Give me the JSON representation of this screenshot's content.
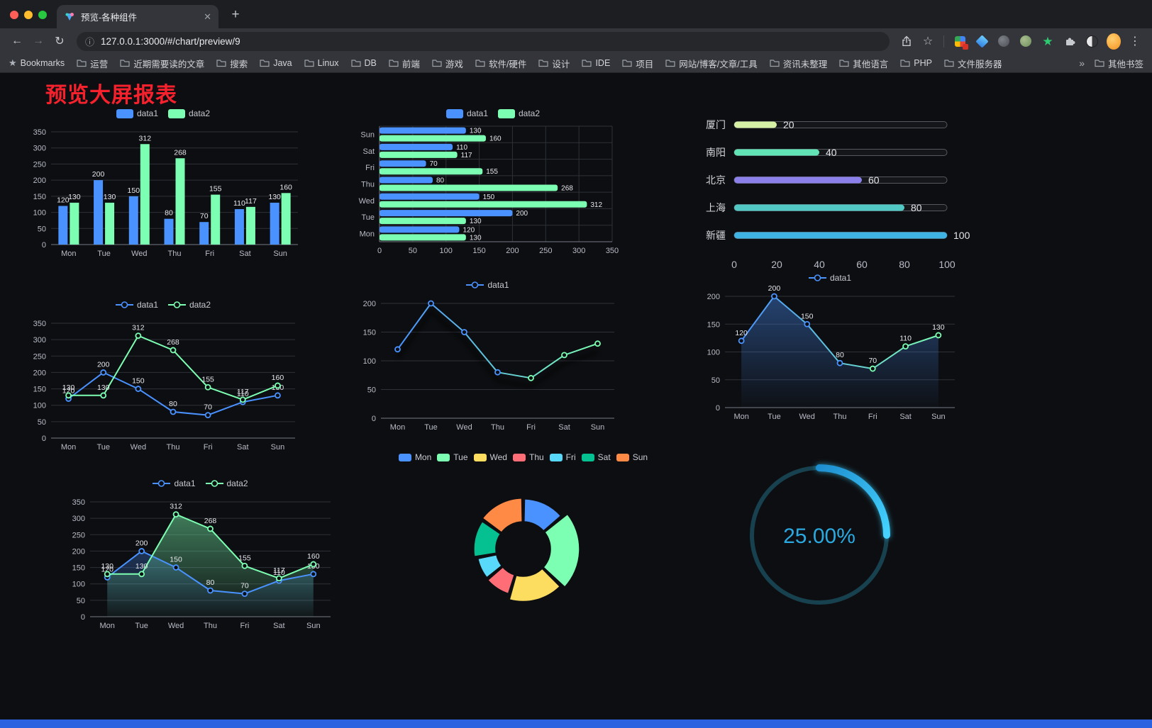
{
  "browser": {
    "tab_title": "预览-各种组件",
    "url": "127.0.0.1:3000/#/chart/preview/9",
    "icons": {
      "close": "✕",
      "new_tab": "+",
      "back": "←",
      "forward": "→",
      "reload": "↻",
      "info": "ⓘ",
      "star": "☆",
      "menu": "⋮",
      "overflow": "»",
      "bookmark_star": "★",
      "ext_star": "★"
    },
    "bookmarks": {
      "first": "Bookmarks",
      "folders": [
        "运营",
        "近期需要读的文章",
        "搜索",
        "Java",
        "Linux",
        "DB",
        "前端",
        "游戏",
        "软件/硬件",
        "设计",
        "IDE",
        "项目",
        "网站/博客/文章/工具",
        "资讯未整理",
        "其他语言",
        "PHP",
        "文件服务器"
      ],
      "other": "其他书签"
    }
  },
  "page": {
    "title": "预览大屏报表",
    "title_color": "#f5222d",
    "background": "#0d0e11",
    "footer_color": "#2a62e0"
  },
  "chart_data": [
    {
      "id": "grouped-bar",
      "type": "bar",
      "legend_style": "bar",
      "categories": [
        "Mon",
        "Tue",
        "Wed",
        "Thu",
        "Fri",
        "Sat",
        "Sun"
      ],
      "series": [
        {
          "name": "data1",
          "color": "#4992ff",
          "values": [
            120,
            200,
            150,
            80,
            70,
            110,
            130
          ]
        },
        {
          "name": "data2",
          "color": "#7cffb2",
          "values": [
            130,
            130,
            312,
            268,
            155,
            117,
            160
          ]
        }
      ],
      "ylim": [
        0,
        350
      ],
      "ytick_step": 50,
      "value_labels": true,
      "grid": true
    },
    {
      "id": "horizontal-bar",
      "type": "hbar",
      "legend_style": "bar",
      "categories": [
        "Mon",
        "Tue",
        "Wed",
        "Thu",
        "Fri",
        "Sat",
        "Sun"
      ],
      "series": [
        {
          "name": "data1",
          "color": "#4992ff",
          "values": [
            120,
            200,
            150,
            80,
            70,
            110,
            130
          ]
        },
        {
          "name": "data2",
          "color": "#7cffb2",
          "values": [
            130,
            130,
            312,
            268,
            155,
            117,
            160
          ]
        }
      ],
      "xlim": [
        0,
        350
      ],
      "xtick_step": 50,
      "value_labels": true,
      "grid": true
    },
    {
      "id": "city-progress",
      "type": "progress",
      "items": [
        {
          "label": "厦门",
          "value": 20,
          "color": "#d5efa4"
        },
        {
          "label": "南阳",
          "value": 40,
          "color": "#62e3b5"
        },
        {
          "label": "北京",
          "value": 60,
          "color": "#8b80e9"
        },
        {
          "label": "上海",
          "value": 80,
          "color": "#52c8c4"
        },
        {
          "label": "新疆",
          "value": 100,
          "color": "#3fb3e4"
        }
      ],
      "xlim": [
        0,
        100
      ],
      "xticks": [
        0,
        20,
        40,
        60,
        80,
        100
      ]
    },
    {
      "id": "two-line",
      "type": "line",
      "legend_style": "line",
      "categories": [
        "Mon",
        "Tue",
        "Wed",
        "Thu",
        "Fri",
        "Sat",
        "Sun"
      ],
      "series": [
        {
          "name": "data1",
          "color": "#4992ff",
          "values": [
            120,
            200,
            150,
            80,
            70,
            110,
            130
          ]
        },
        {
          "name": "data2",
          "color": "#7cffb2",
          "values": [
            130,
            130,
            312,
            268,
            155,
            117,
            160
          ]
        }
      ],
      "ylim": [
        0,
        350
      ],
      "ytick_step": 50,
      "value_labels": true,
      "grid": true
    },
    {
      "id": "gradient-line",
      "type": "line",
      "legend_style": "line",
      "categories": [
        "Mon",
        "Tue",
        "Wed",
        "Thu",
        "Fri",
        "Sat",
        "Sun"
      ],
      "series": [
        {
          "name": "data1",
          "color": "#4992ff",
          "gradient": [
            "#4992ff",
            "#7cffb2"
          ],
          "shadow": true,
          "values": [
            120,
            200,
            150,
            80,
            70,
            110,
            130
          ]
        }
      ],
      "ylim": [
        0,
        200
      ],
      "ytick_step": 50,
      "value_labels": false,
      "grid": true
    },
    {
      "id": "area-line",
      "type": "line",
      "legend_style": "line",
      "categories": [
        "Mon",
        "Tue",
        "Wed",
        "Thu",
        "Fri",
        "Sat",
        "Sun"
      ],
      "series": [
        {
          "name": "data1",
          "color": "#4992ff",
          "gradient": [
            "#4992ff",
            "#7cffb2"
          ],
          "area": [
            "rgba(73,146,255,0.40)",
            "rgba(73,146,255,0.02)"
          ],
          "values": [
            120,
            200,
            150,
            80,
            70,
            110,
            130
          ]
        }
      ],
      "ylim": [
        0,
        200
      ],
      "ytick_step": 50,
      "value_labels": true,
      "grid": true
    },
    {
      "id": "two-line-area",
      "type": "line",
      "legend_style": "line",
      "categories": [
        "Mon",
        "Tue",
        "Wed",
        "Thu",
        "Fri",
        "Sat",
        "Sun"
      ],
      "series": [
        {
          "name": "data1",
          "color": "#4992ff",
          "area": [
            "rgba(73,146,255,0.30)",
            "rgba(73,146,255,0.02)"
          ],
          "values": [
            120,
            200,
            150,
            80,
            70,
            110,
            130
          ]
        },
        {
          "name": "data2",
          "color": "#7cffb2",
          "area": [
            "rgba(124,255,178,0.45)",
            "rgba(124,255,178,0.03)"
          ],
          "values": [
            130,
            130,
            312,
            268,
            155,
            117,
            160
          ]
        }
      ],
      "ylim": [
        0,
        350
      ],
      "ytick_step": 50,
      "value_labels": true,
      "grid": true
    },
    {
      "id": "weekday-rose-pie",
      "type": "pie",
      "legend_style": "pie",
      "rose": true,
      "donut": true,
      "slices": [
        {
          "label": "Mon",
          "value": 120,
          "color": "#4992ff"
        },
        {
          "label": "Tue",
          "value": 200,
          "color": "#7cffb2"
        },
        {
          "label": "Wed",
          "value": 150,
          "color": "#fddd60"
        },
        {
          "label": "Thu",
          "value": 80,
          "color": "#ff6e76"
        },
        {
          "label": "Fri",
          "value": 70,
          "color": "#58d9f9"
        },
        {
          "label": "Sat",
          "value": 110,
          "color": "#05c091"
        },
        {
          "label": "Sun",
          "value": 130,
          "color": "#ff8a45"
        }
      ]
    },
    {
      "id": "percent-gauge",
      "type": "gauge",
      "percent": 25,
      "max": 100,
      "display": "25.00%",
      "color_start": "#1f8fd0",
      "color_end": "#45d4ff",
      "track_color": "#17414e",
      "text_color": "#2aa9e1"
    }
  ]
}
